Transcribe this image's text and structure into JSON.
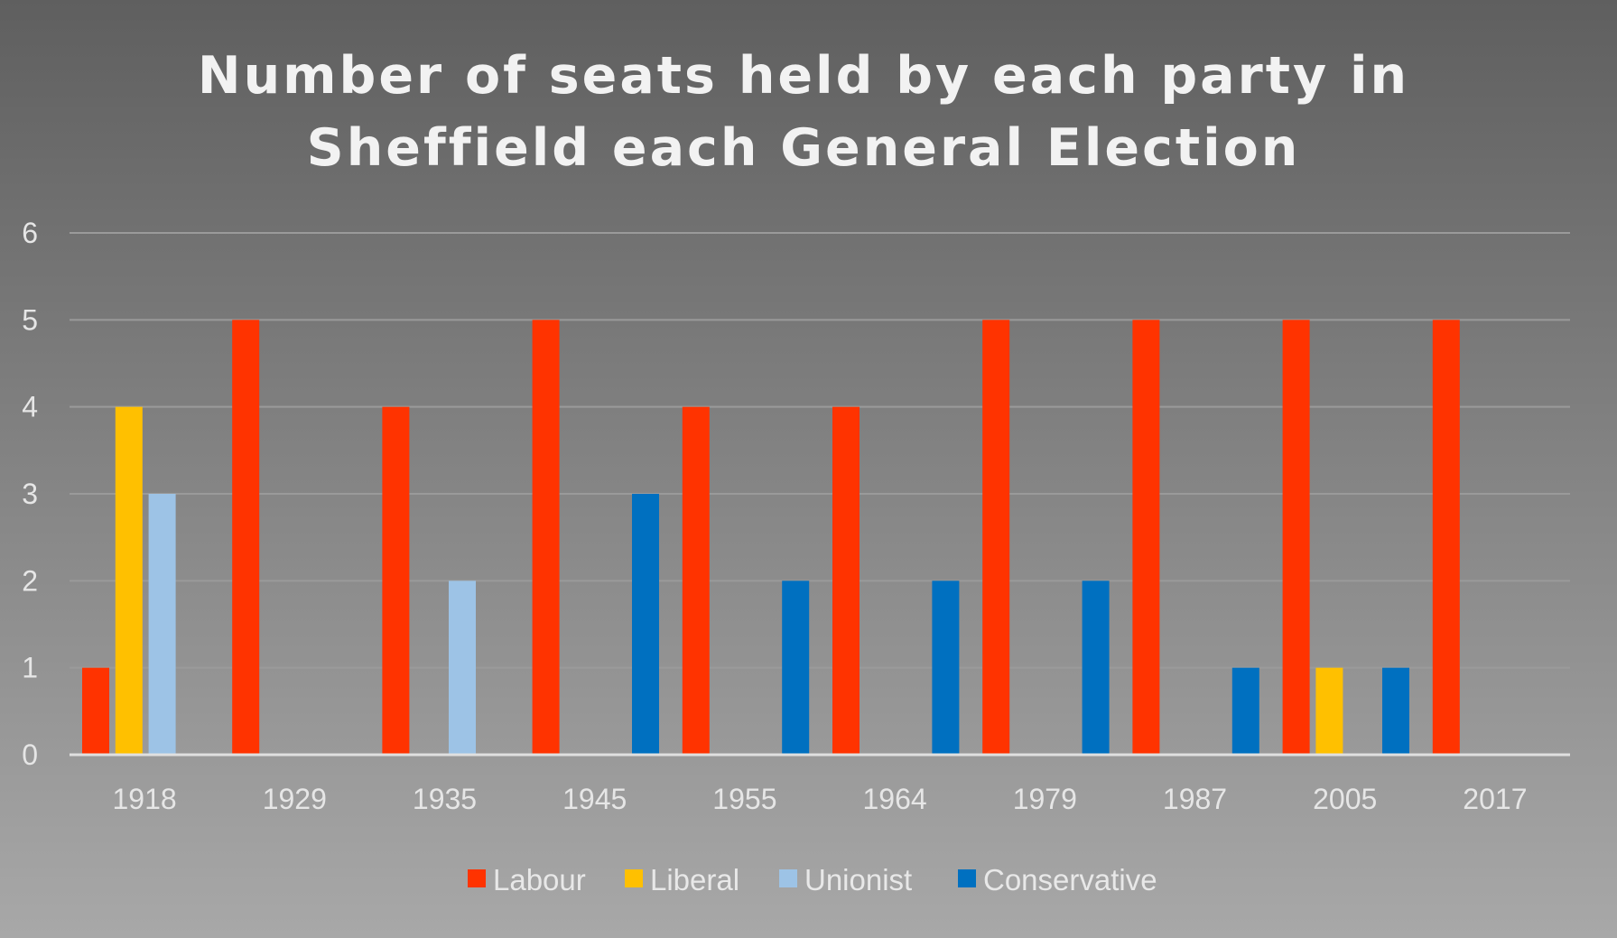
{
  "chart_data": {
    "type": "bar",
    "title_lines": [
      "Number of seats held by each party in",
      "Sheffield each General Election"
    ],
    "categories": [
      "1918",
      "1929",
      "1935",
      "1945",
      "1955",
      "1964",
      "1979",
      "1987",
      "2005",
      "2017"
    ],
    "series": [
      {
        "name": "Labour",
        "color": "#ff3300",
        "values": [
          1,
          5,
          4,
          5,
          4,
          4,
          5,
          5,
          5,
          5
        ]
      },
      {
        "name": "Liberal",
        "color": "#ffc000",
        "values": [
          4,
          0,
          0,
          0,
          0,
          0,
          0,
          0,
          1,
          0
        ]
      },
      {
        "name": "Unionist",
        "color": "#9dc3e6",
        "values": [
          3,
          0,
          2,
          0,
          0,
          0,
          0,
          0,
          0,
          0
        ]
      },
      {
        "name": "Conservative",
        "color": "#0070c0",
        "values": [
          0,
          0,
          0,
          3,
          2,
          2,
          2,
          1,
          1,
          0
        ]
      }
    ],
    "ylim": [
      0,
      6
    ],
    "yticks": [
      "0",
      "1",
      "2",
      "3",
      "4",
      "5",
      "6"
    ],
    "grid": true,
    "legend_position": "bottom"
  }
}
